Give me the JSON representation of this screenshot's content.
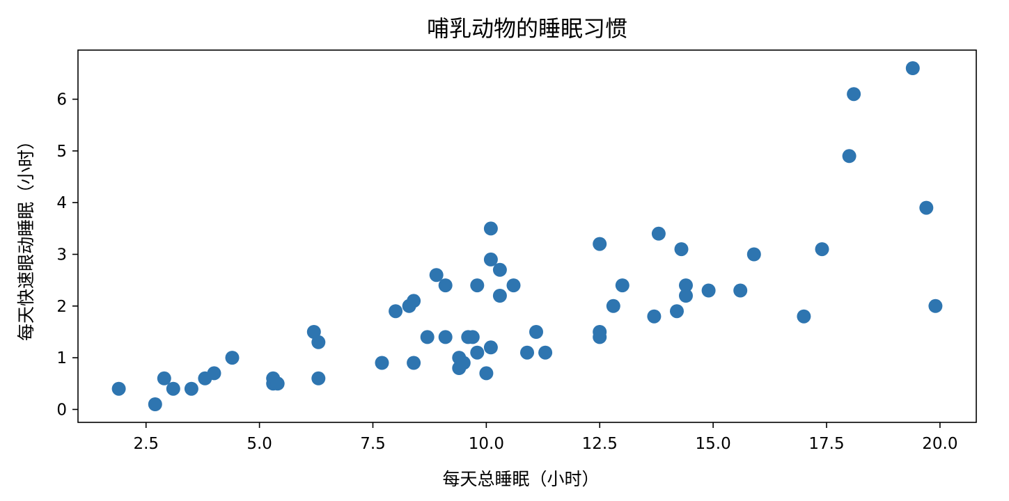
{
  "chart_data": {
    "type": "scatter",
    "title": "哺乳动物的睡眠习惯",
    "xlabel": "每天总睡眠（小时）",
    "ylabel": "每天快速眼动睡眠（小时）",
    "xlim": [
      1.0,
      20.8
    ],
    "ylim": [
      -0.25,
      6.95
    ],
    "xticks": [
      2.5,
      5.0,
      7.5,
      10.0,
      12.5,
      15.0,
      17.5,
      20.0
    ],
    "xtick_labels": [
      "2.5",
      "5.0",
      "7.5",
      "10.0",
      "12.5",
      "15.0",
      "17.5",
      "20.0"
    ],
    "yticks": [
      0,
      1,
      2,
      3,
      4,
      5,
      6
    ],
    "ytick_labels": [
      "0",
      "1",
      "2",
      "3",
      "4",
      "5",
      "6"
    ],
    "grid": false,
    "color": "#2e75b0",
    "points": [
      [
        1.9,
        0.4
      ],
      [
        2.7,
        0.1
      ],
      [
        2.9,
        0.6
      ],
      [
        3.1,
        0.4
      ],
      [
        3.5,
        0.4
      ],
      [
        3.8,
        0.6
      ],
      [
        4.0,
        0.7
      ],
      [
        4.4,
        1.0
      ],
      [
        5.3,
        0.5
      ],
      [
        5.3,
        0.6
      ],
      [
        5.4,
        0.5
      ],
      [
        6.2,
        1.5
      ],
      [
        6.3,
        1.3
      ],
      [
        6.3,
        0.6
      ],
      [
        7.7,
        0.9
      ],
      [
        8.0,
        1.9
      ],
      [
        8.3,
        2.0
      ],
      [
        8.4,
        2.1
      ],
      [
        8.4,
        0.9
      ],
      [
        8.7,
        1.4
      ],
      [
        8.9,
        2.6
      ],
      [
        9.1,
        2.4
      ],
      [
        9.1,
        1.4
      ],
      [
        9.4,
        1.0
      ],
      [
        9.4,
        0.8
      ],
      [
        9.5,
        0.9
      ],
      [
        9.6,
        1.4
      ],
      [
        9.7,
        1.4
      ],
      [
        9.8,
        2.4
      ],
      [
        9.8,
        1.1
      ],
      [
        10.0,
        0.7
      ],
      [
        10.1,
        3.5
      ],
      [
        10.1,
        2.9
      ],
      [
        10.1,
        1.2
      ],
      [
        10.3,
        2.7
      ],
      [
        10.3,
        2.2
      ],
      [
        10.6,
        2.4
      ],
      [
        10.9,
        1.1
      ],
      [
        11.1,
        1.5
      ],
      [
        11.3,
        1.1
      ],
      [
        12.5,
        3.2
      ],
      [
        12.5,
        1.5
      ],
      [
        12.5,
        1.4
      ],
      [
        12.8,
        2.0
      ],
      [
        13.0,
        2.4
      ],
      [
        13.7,
        1.8
      ],
      [
        13.8,
        3.4
      ],
      [
        14.2,
        1.9
      ],
      [
        14.3,
        3.1
      ],
      [
        14.4,
        2.4
      ],
      [
        14.4,
        2.2
      ],
      [
        14.9,
        2.3
      ],
      [
        15.6,
        2.3
      ],
      [
        15.9,
        3.0
      ],
      [
        17.0,
        1.8
      ],
      [
        17.4,
        3.1
      ],
      [
        18.0,
        4.9
      ],
      [
        18.1,
        6.1
      ],
      [
        19.4,
        6.6
      ],
      [
        19.7,
        3.9
      ],
      [
        19.9,
        2.0
      ]
    ]
  }
}
